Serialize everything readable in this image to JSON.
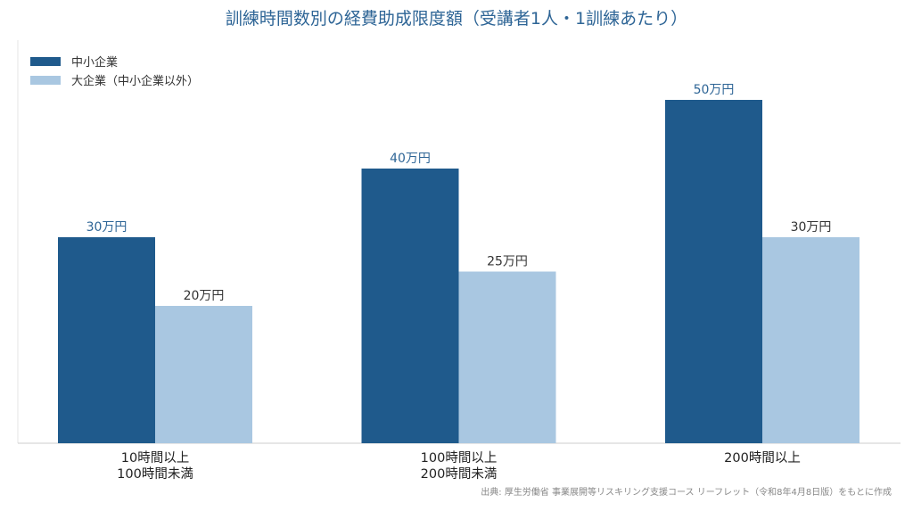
{
  "chart_data": {
    "type": "bar",
    "title": "訓練時間数別の経費助成限度額（受講者1人・1訓練あたり）",
    "categories": [
      [
        "10時間以上",
        "100時間未満"
      ],
      [
        "100時間以上",
        "200時間未満"
      ],
      [
        "200時間以上"
      ]
    ],
    "series": [
      {
        "name": "中小企業",
        "values": [
          30,
          40,
          50
        ],
        "labels": [
          "30万円",
          "40万円",
          "50万円"
        ],
        "color": "#1f5a8c",
        "label_color": "#2e6596"
      },
      {
        "name": "大企業（中小企業以外）",
        "values": [
          20,
          25,
          30
        ],
        "labels": [
          "20万円",
          "25万円",
          "30万円"
        ],
        "color": "#a9c7e1",
        "label_color": "#333333"
      }
    ],
    "xlabel": "",
    "ylabel": "",
    "ylim": [
      0,
      50
    ],
    "grid": false,
    "legend_position": "top-left",
    "source": "出典: 厚生労働省 事業展開等リスキリング支援コース リーフレット（令和8年4月8日版）をもとに作成"
  }
}
